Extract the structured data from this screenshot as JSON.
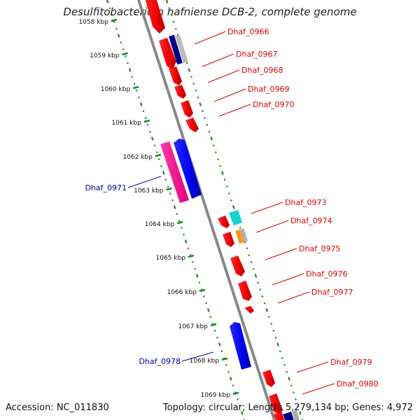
{
  "title": "Desulfitobacterium hafniense DCB-2, complete genome",
  "footer": {
    "accession": "Accession: NC_011830",
    "topology": "Topology: circular; Length: 5,279,134 bp; Genes: 4,972"
  },
  "colors": {
    "background": "#ffffff",
    "backbone": "#888888",
    "tick": "#1a8a1a",
    "forward_label": "#dd0000",
    "reverse_label": "#0000aa"
  },
  "scale_labels": [
    "1058 kbp",
    "1059 kbp",
    "1060 kbp",
    "1061 kbp",
    "1062 kbp",
    "1063 kbp",
    "1064 kbp",
    "1065 kbp",
    "1066 kbp",
    "1067 kbp",
    "1068 kbp",
    "1069 kbp"
  ],
  "gene_labels_right": [
    "Dhaf_0966",
    "Dhaf_0967",
    "Dhaf_0968",
    "Dhaf_0969",
    "Dhaf_0970",
    "Dhaf_0973",
    "Dhaf_0974",
    "Dhaf_0975",
    "Dhaf_0976",
    "Dhaf_0977",
    "Dhaf_0979",
    "Dhaf_0980"
  ],
  "gene_labels_left": [
    "Dhaf_0971",
    "Dhaf_0978"
  ]
}
